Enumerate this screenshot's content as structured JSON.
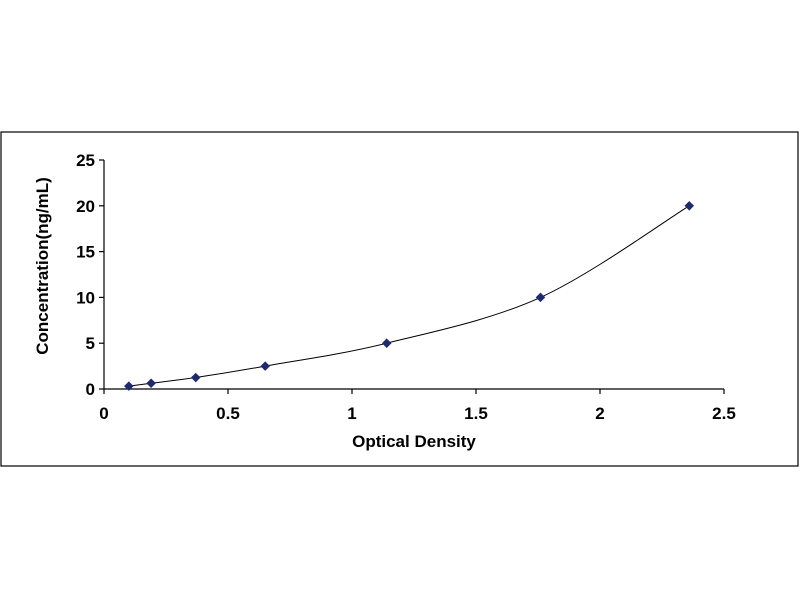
{
  "chart_data": {
    "type": "scatter",
    "title": "",
    "xlabel": "Optical Density",
    "ylabel": "Concentration(ng/mL)",
    "xlim": [
      0,
      2.5
    ],
    "ylim": [
      0,
      25
    ],
    "x_ticks": [
      "0",
      "0.5",
      "1",
      "1.5",
      "2",
      "2.5"
    ],
    "y_ticks": [
      "0",
      "5",
      "10",
      "15",
      "20",
      "25"
    ],
    "grid": false,
    "legend": "none",
    "series": [
      {
        "marker": "diamond",
        "line": "smooth",
        "color": "#1f2a6e",
        "points": [
          {
            "x": 0.1,
            "y": 0.31
          },
          {
            "x": 0.19,
            "y": 0.63
          },
          {
            "x": 0.37,
            "y": 1.25
          },
          {
            "x": 0.65,
            "y": 2.5
          },
          {
            "x": 1.14,
            "y": 5
          },
          {
            "x": 1.76,
            "y": 10
          },
          {
            "x": 2.36,
            "y": 20
          }
        ]
      }
    ]
  }
}
